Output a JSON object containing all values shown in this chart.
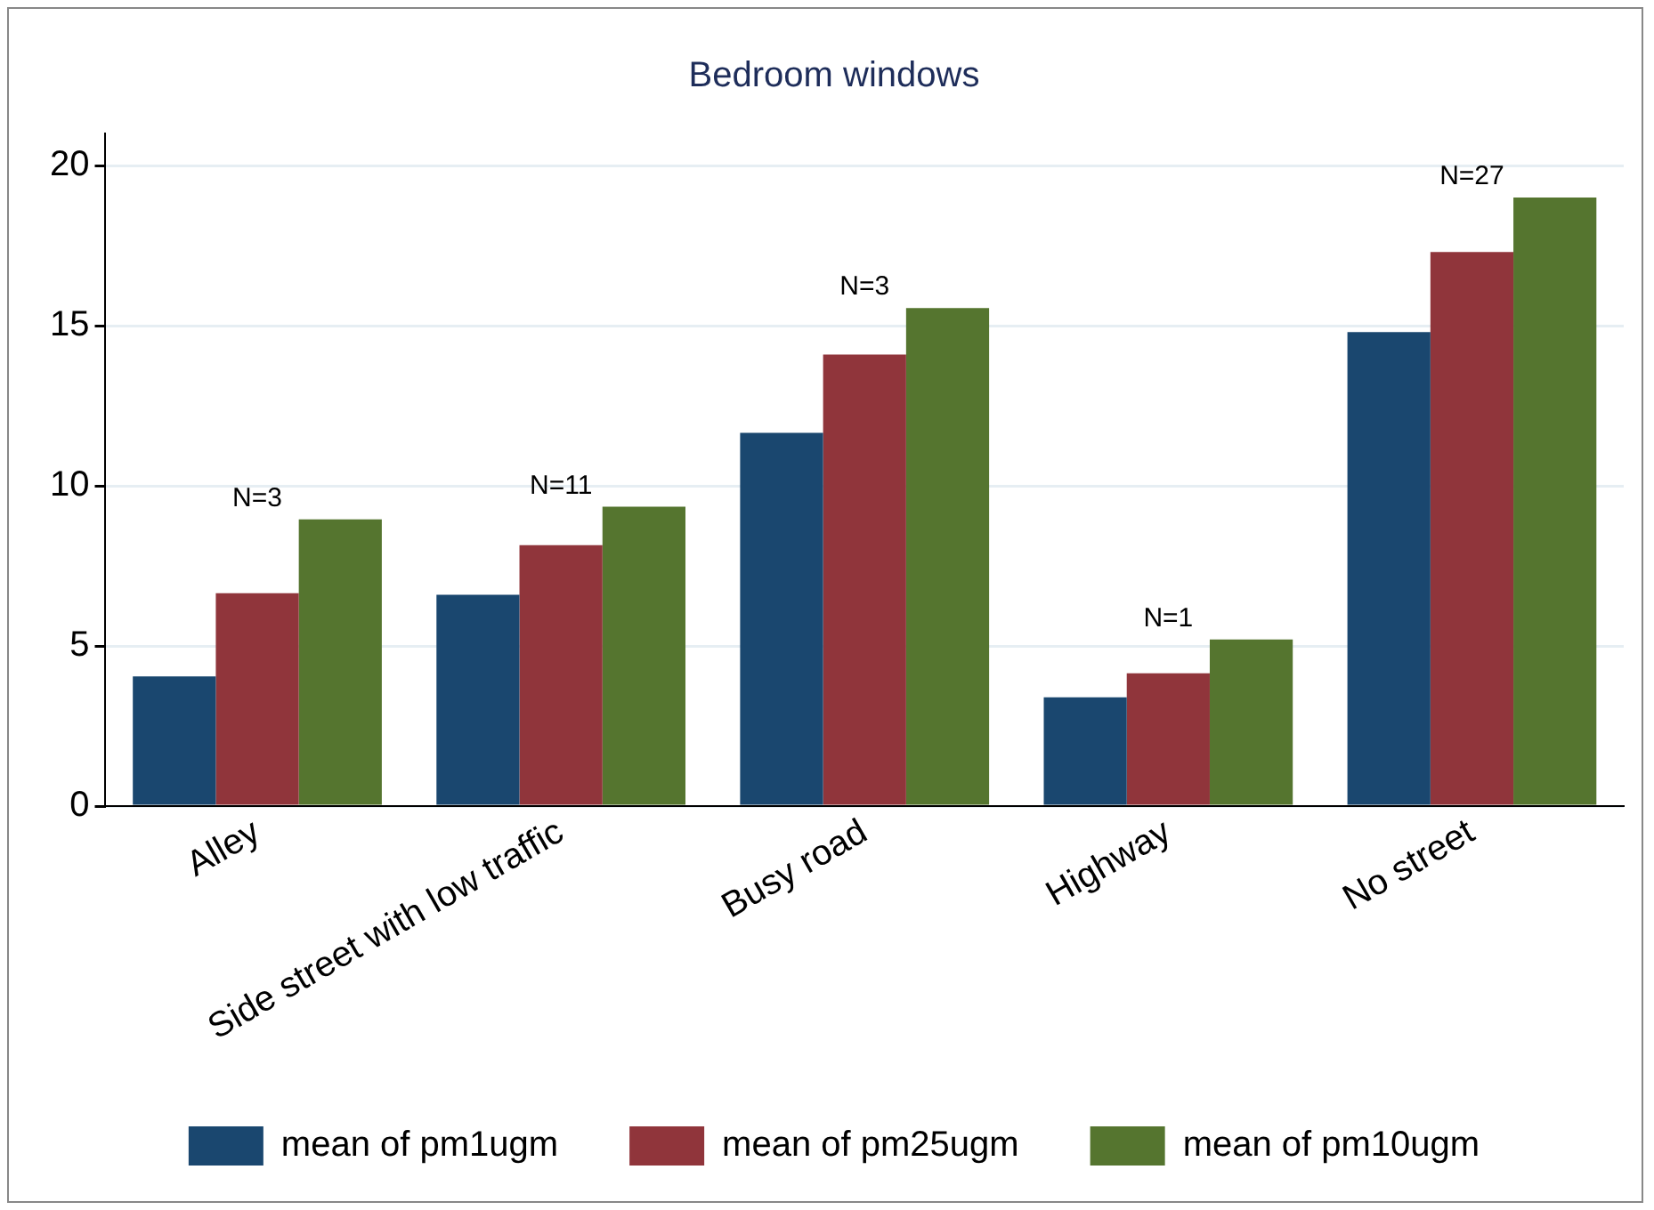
{
  "chart_data": {
    "type": "bar",
    "title": "Bedroom windows",
    "categories": [
      "Alley",
      "Side street with low traffic",
      "Busy road",
      "Highway",
      "No street"
    ],
    "series": [
      {
        "name": "mean of pm1ugm",
        "color": "#1a476f",
        "values": [
          4.05,
          6.6,
          11.65,
          3.4,
          14.8
        ]
      },
      {
        "name": "mean of pm25ugm",
        "color": "#90353b",
        "values": [
          6.65,
          8.15,
          14.1,
          4.15,
          17.3
        ]
      },
      {
        "name": "mean of pm10ugm",
        "color": "#55752f",
        "values": [
          8.95,
          9.35,
          15.55,
          5.2,
          19.0
        ]
      }
    ],
    "ylim": [
      0,
      21
    ],
    "yticks": [
      0,
      5,
      10,
      15,
      20
    ],
    "grid": "y",
    "legend": "bottom",
    "annotations": [
      "N=3",
      "N=11",
      "N=3",
      "N=1",
      "N=27"
    ]
  }
}
